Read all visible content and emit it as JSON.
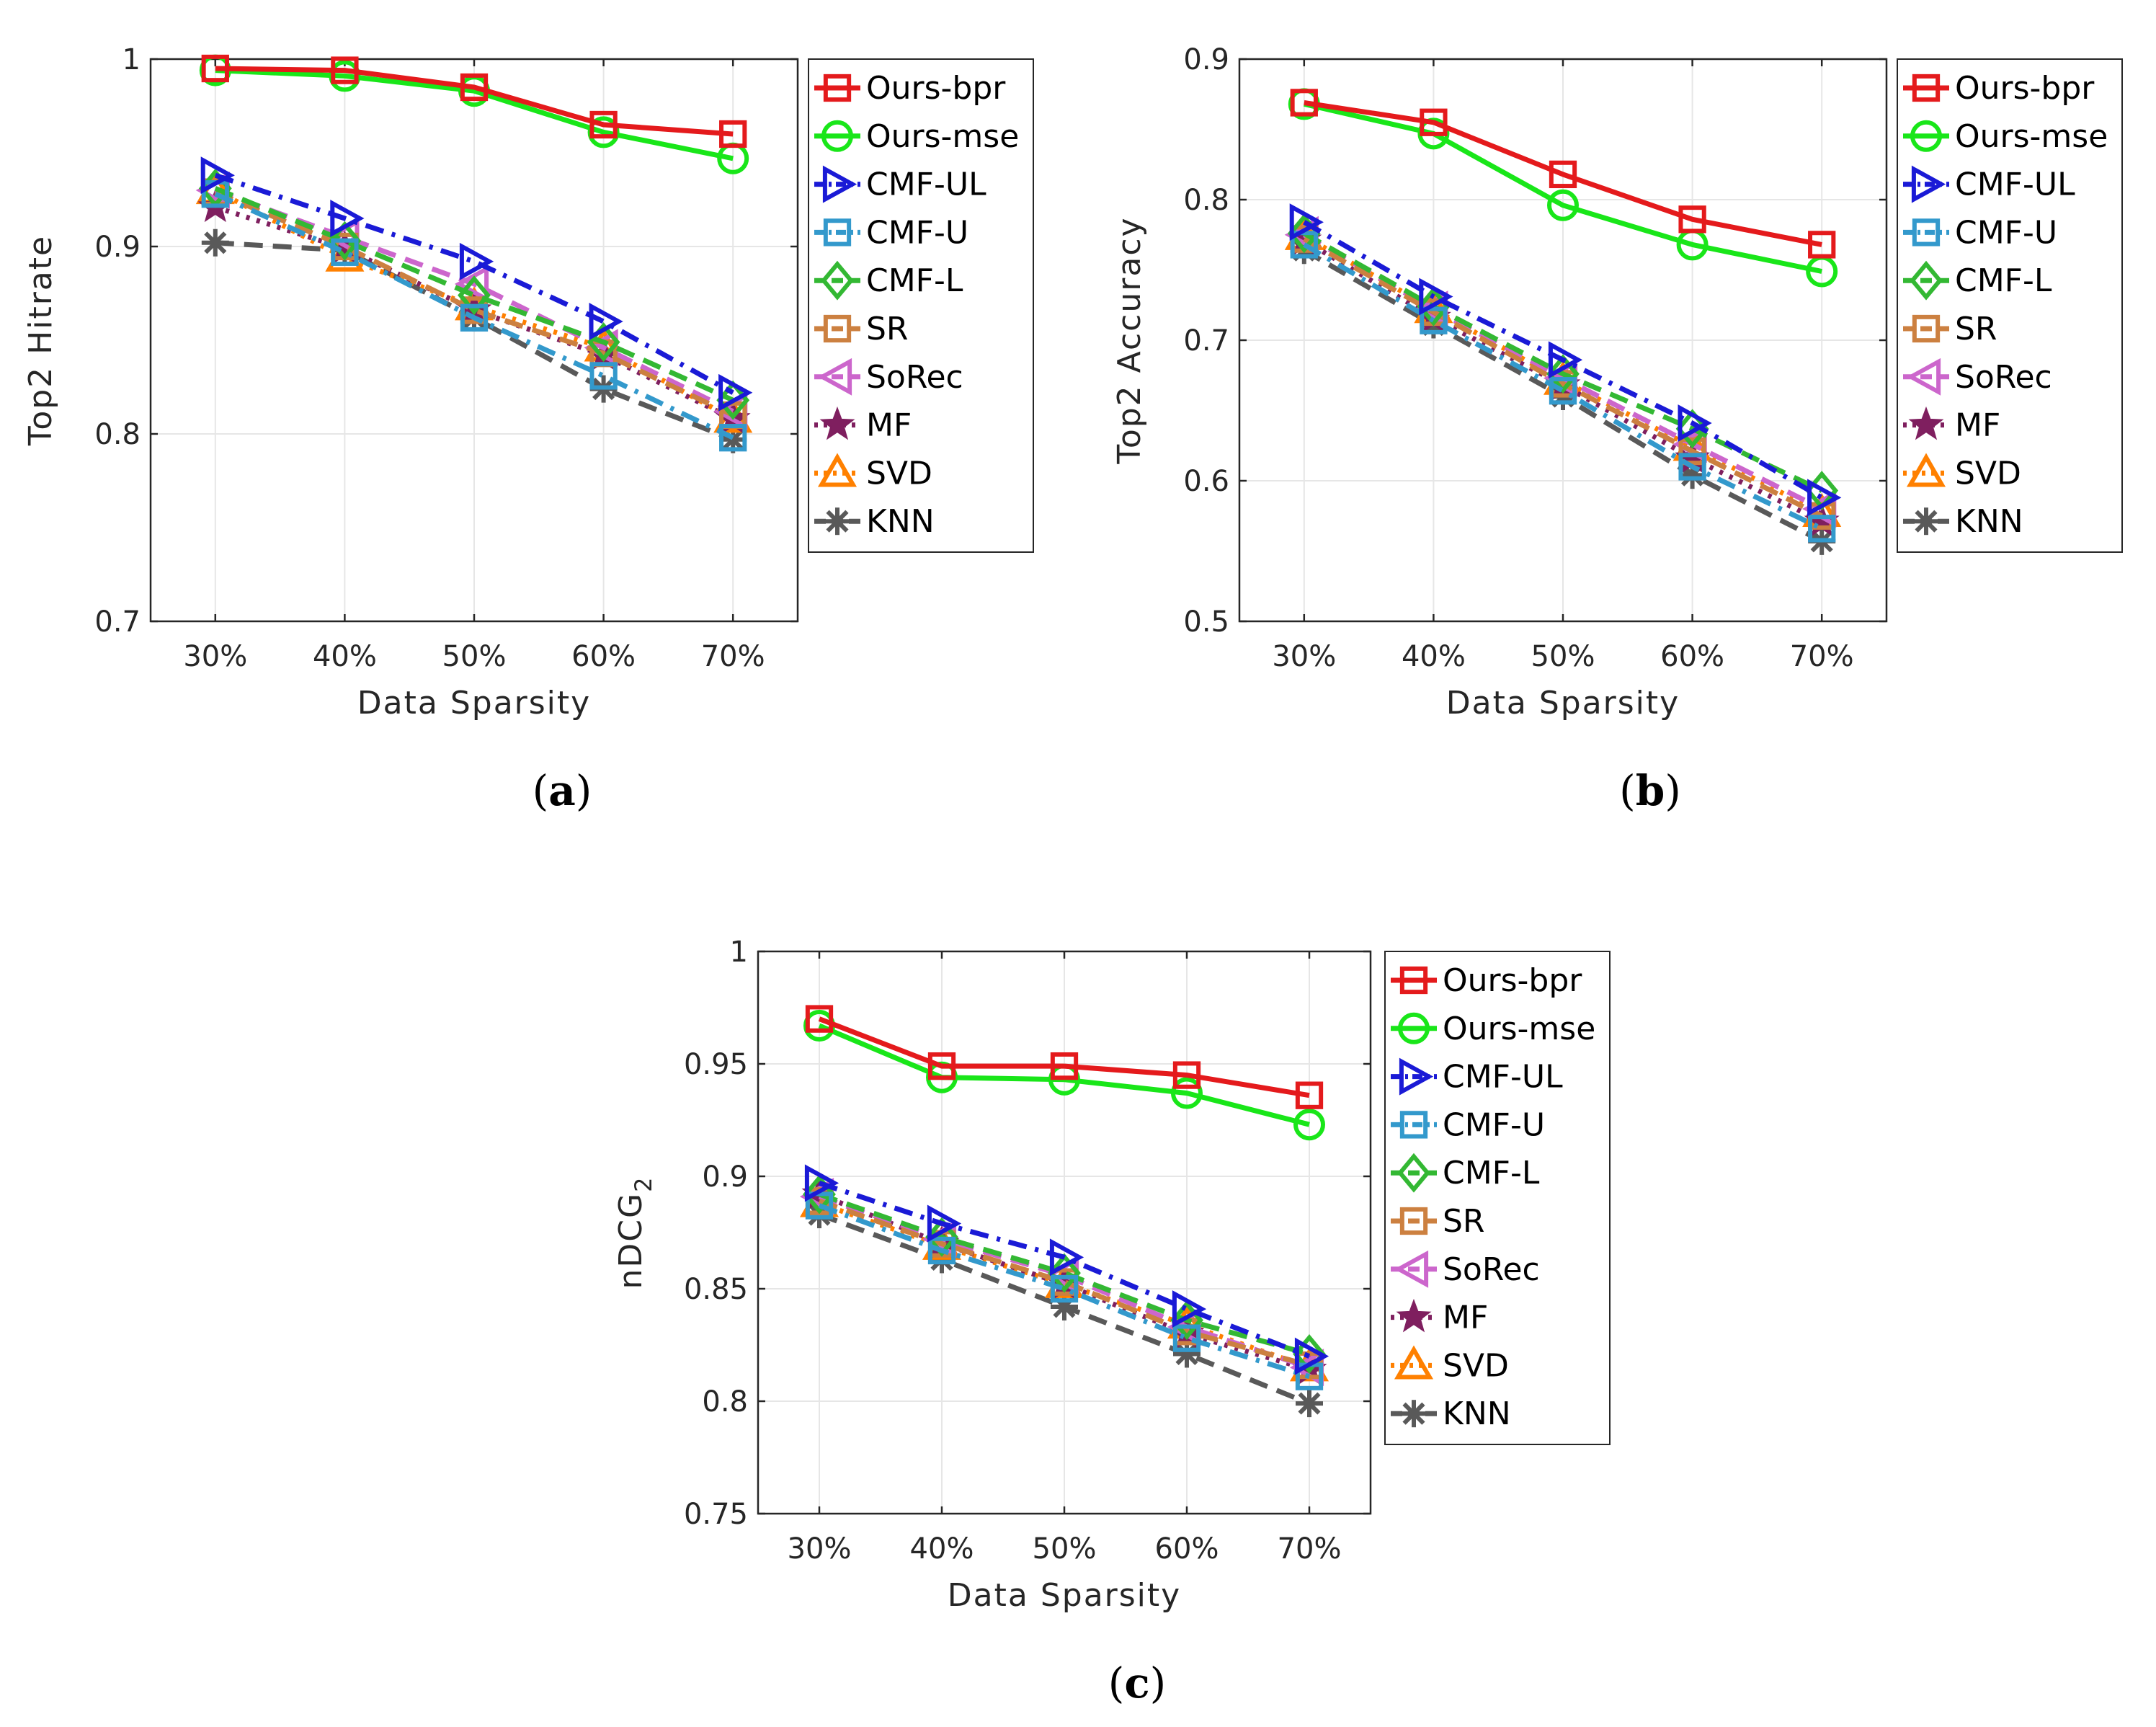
{
  "chart_data": [
    {
      "type": "line",
      "panel": "a",
      "caption": "(a)",
      "categories": [
        "30%",
        "40%",
        "50%",
        "60%",
        "70%"
      ],
      "xlabel": "Data Sparsity",
      "ylabel": "Top2 Hitrate",
      "ylim": [
        0.7,
        1.0
      ],
      "yticks": [
        "0.7",
        "0.8",
        "0.9",
        "1"
      ],
      "grid": true,
      "legend_position": "outside-right",
      "series": [
        {
          "name": "Ours-bpr",
          "values": [
            0.995,
            0.994,
            0.985,
            0.965,
            0.96
          ]
        },
        {
          "name": "Ours-mse",
          "values": [
            0.994,
            0.991,
            0.983,
            0.961,
            0.947
          ]
        },
        {
          "name": "CMF-UL",
          "values": [
            0.938,
            0.915,
            0.892,
            0.86,
            0.822
          ]
        },
        {
          "name": "CMF-U",
          "values": [
            0.928,
            0.897,
            0.862,
            0.831,
            0.798
          ]
        },
        {
          "name": "CMF-L",
          "values": [
            0.931,
            0.903,
            0.874,
            0.849,
            0.818
          ]
        },
        {
          "name": "SR",
          "values": [
            0.929,
            0.9,
            0.866,
            0.843,
            0.81
          ]
        },
        {
          "name": "SoRec",
          "values": [
            0.93,
            0.905,
            0.88,
            0.846,
            0.812
          ]
        },
        {
          "name": "MF",
          "values": [
            0.921,
            0.899,
            0.866,
            0.842,
            0.808
          ]
        },
        {
          "name": "SVD",
          "values": [
            0.93,
            0.894,
            0.868,
            0.846,
            0.808
          ]
        },
        {
          "name": "KNN",
          "values": [
            0.902,
            0.898,
            0.862,
            0.824,
            0.797
          ]
        }
      ]
    },
    {
      "type": "line",
      "panel": "b",
      "caption": "(b)",
      "categories": [
        "30%",
        "40%",
        "50%",
        "60%",
        "70%"
      ],
      "xlabel": "Data Sparsity",
      "ylabel": "Top2 Accuracy",
      "ylim": [
        0.5,
        0.9
      ],
      "yticks": [
        "0.5",
        "0.6",
        "0.7",
        "0.8",
        "0.9"
      ],
      "grid": true,
      "legend_position": "outside-right",
      "series": [
        {
          "name": "Ours-bpr",
          "values": [
            0.869,
            0.855,
            0.818,
            0.786,
            0.768
          ]
        },
        {
          "name": "Ours-mse",
          "values": [
            0.868,
            0.847,
            0.796,
            0.768,
            0.749
          ]
        },
        {
          "name": "CMF-UL",
          "values": [
            0.784,
            0.731,
            0.686,
            0.641,
            0.588
          ]
        },
        {
          "name": "CMF-U",
          "values": [
            0.768,
            0.714,
            0.664,
            0.61,
            0.566
          ]
        },
        {
          "name": "CMF-L",
          "values": [
            0.776,
            0.724,
            0.676,
            0.637,
            0.593
          ]
        },
        {
          "name": "SR",
          "values": [
            0.772,
            0.72,
            0.669,
            0.621,
            0.575
          ]
        },
        {
          "name": "SoRec",
          "values": [
            0.775,
            0.722,
            0.673,
            0.626,
            0.58
          ]
        },
        {
          "name": "MF",
          "values": [
            0.771,
            0.716,
            0.668,
            0.616,
            0.571
          ]
        },
        {
          "name": "SVD",
          "values": [
            0.774,
            0.722,
            0.671,
            0.624,
            0.577
          ]
        },
        {
          "name": "KNN",
          "values": [
            0.764,
            0.711,
            0.66,
            0.604,
            0.557
          ]
        }
      ]
    },
    {
      "type": "line",
      "panel": "c",
      "caption": "(c)",
      "categories": [
        "30%",
        "40%",
        "50%",
        "60%",
        "70%"
      ],
      "xlabel": "Data Sparsity",
      "ylabel": "nDCG",
      "ylabel_subscript": "2",
      "ylim": [
        0.75,
        1.0
      ],
      "yticks": [
        "0.75",
        "0.8",
        "0.85",
        "0.9",
        "0.95",
        "1"
      ],
      "grid": true,
      "legend_position": "outside-right",
      "series": [
        {
          "name": "Ours-bpr",
          "values": [
            0.97,
            0.949,
            0.949,
            0.945,
            0.936
          ]
        },
        {
          "name": "Ours-mse",
          "values": [
            0.967,
            0.944,
            0.943,
            0.937,
            0.923
          ]
        },
        {
          "name": "CMF-UL",
          "values": [
            0.897,
            0.879,
            0.864,
            0.841,
            0.82
          ]
        },
        {
          "name": "CMF-U",
          "values": [
            0.887,
            0.867,
            0.85,
            0.828,
            0.811
          ]
        },
        {
          "name": "CMF-L",
          "values": [
            0.892,
            0.873,
            0.857,
            0.836,
            0.821
          ]
        },
        {
          "name": "SR",
          "values": [
            0.889,
            0.87,
            0.853,
            0.831,
            0.816
          ]
        },
        {
          "name": "SoRec",
          "values": [
            0.891,
            0.872,
            0.856,
            0.833,
            0.815
          ]
        },
        {
          "name": "MF",
          "values": [
            0.892,
            0.87,
            0.852,
            0.83,
            0.814
          ]
        },
        {
          "name": "SVD",
          "values": [
            0.888,
            0.869,
            0.852,
            0.834,
            0.815
          ]
        },
        {
          "name": "KNN",
          "values": [
            0.883,
            0.863,
            0.842,
            0.821,
            0.799
          ]
        }
      ]
    }
  ],
  "styles": {
    "Ours-bpr": {
      "color": "#e41a1c",
      "marker": "square",
      "dash": "solid"
    },
    "Ours-mse": {
      "color": "#19e619",
      "marker": "circle",
      "dash": "solid"
    },
    "CMF-UL": {
      "color": "#1a1ad6",
      "marker": "triangle-right",
      "dash": "dashdot"
    },
    "CMF-U": {
      "color": "#3399cc",
      "marker": "square",
      "dash": "dashdot"
    },
    "CMF-L": {
      "color": "#33b833",
      "marker": "diamond",
      "dash": "dashed"
    },
    "SR": {
      "color": "#cc8040",
      "marker": "square",
      "dash": "dashed"
    },
    "SoRec": {
      "color": "#cc66cc",
      "marker": "triangle-left",
      "dash": "dashed"
    },
    "MF": {
      "color": "#7f1f5f",
      "marker": "star",
      "dash": "dotted"
    },
    "SVD": {
      "color": "#ff8000",
      "marker": "triangle-up",
      "dash": "dotted"
    },
    "KNN": {
      "color": "#595959",
      "marker": "asterisk",
      "dash": "dashed"
    }
  }
}
